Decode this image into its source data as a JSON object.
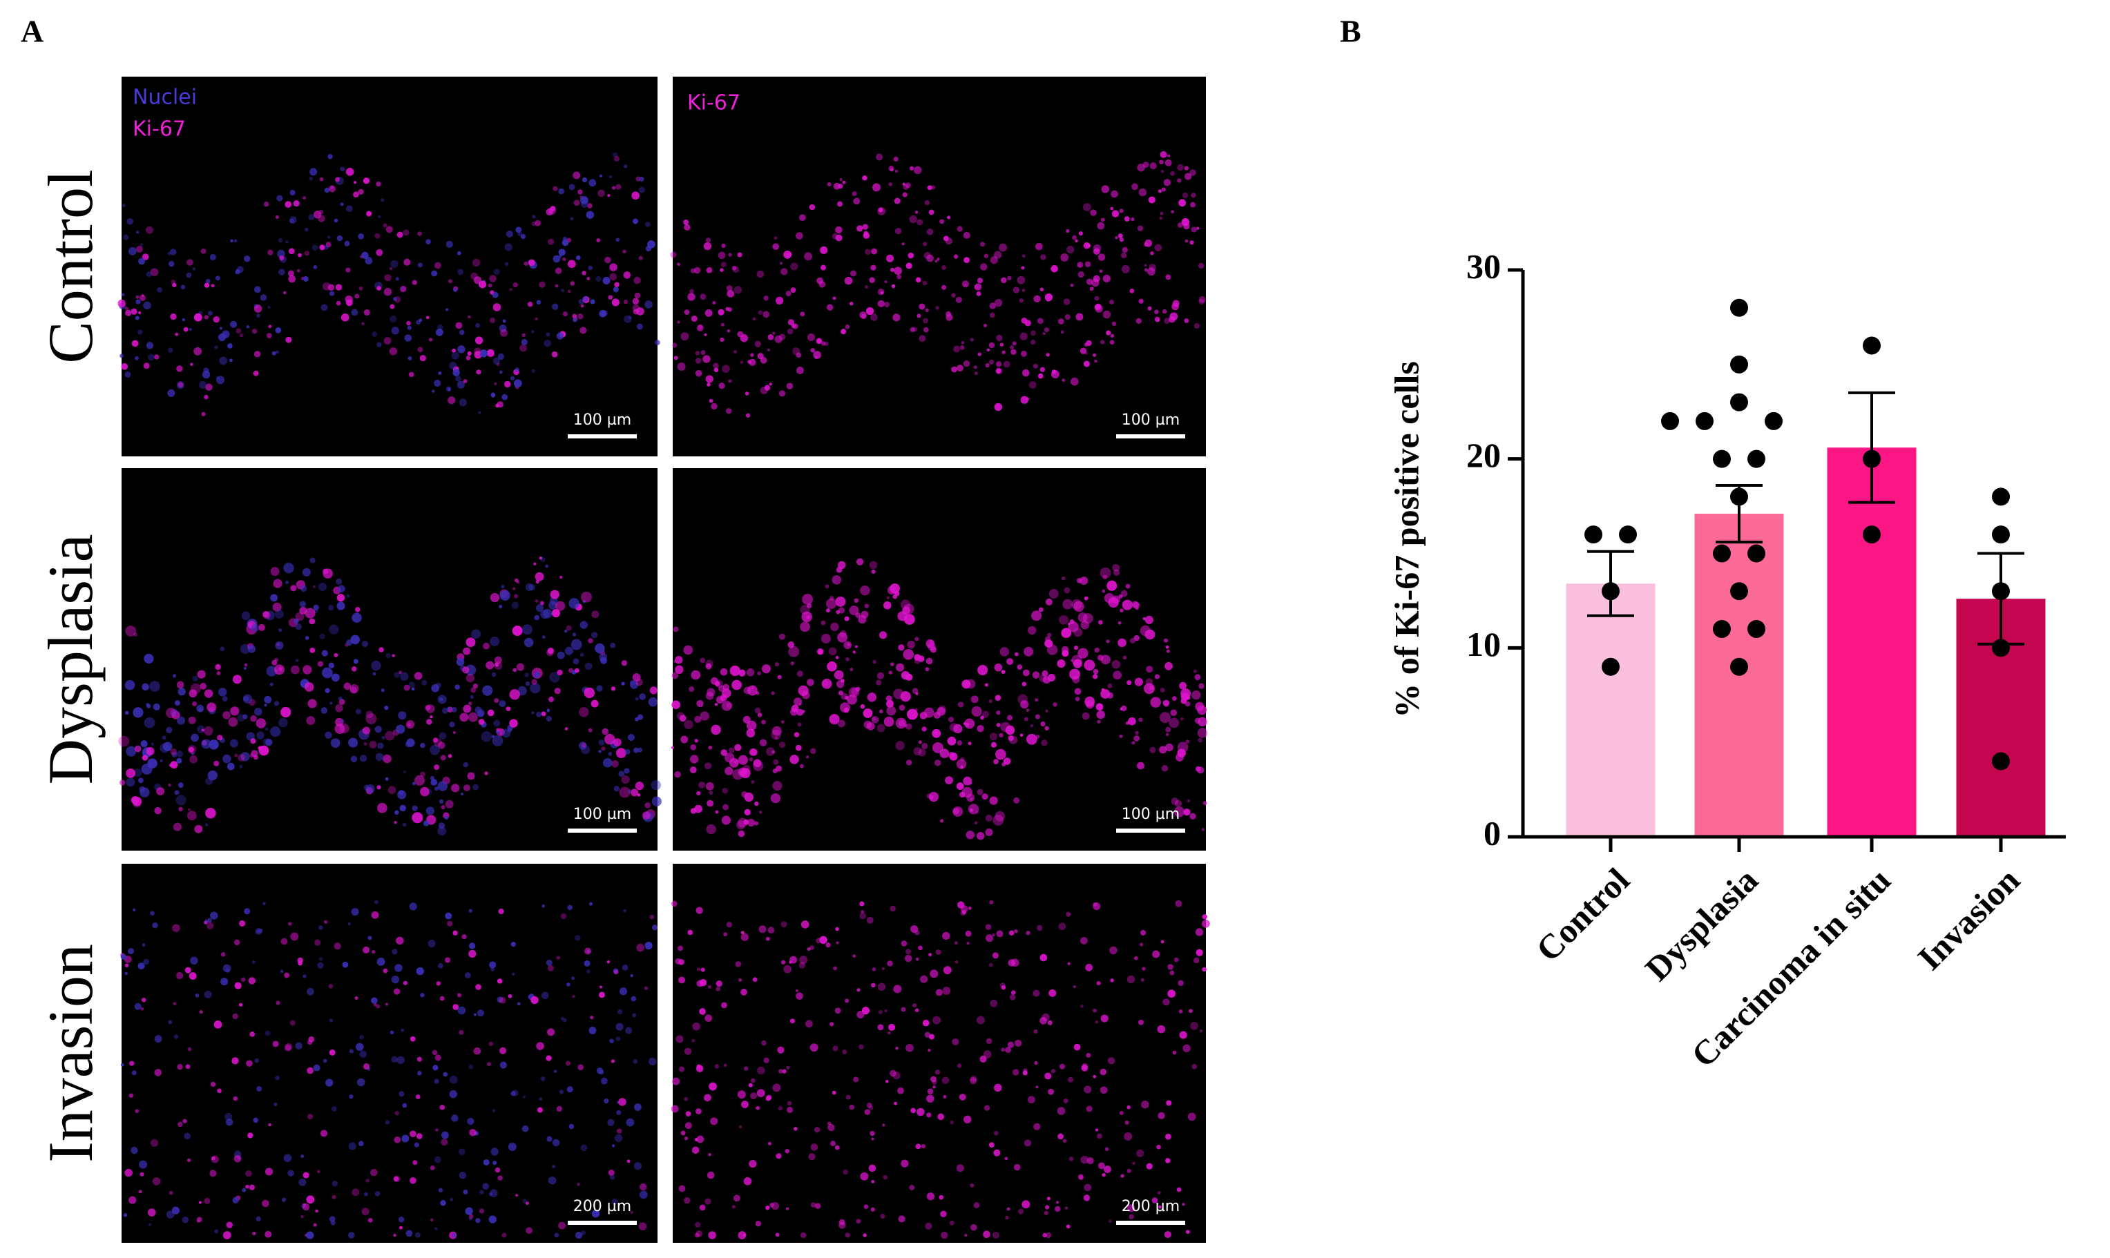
{
  "figure": {
    "panel_a_label": "A",
    "panel_b_label": "B",
    "channel_nuclei": "Nuclei",
    "channel_ki67": "Ki-67",
    "channel_ki67_right": "Ki-67",
    "rows": [
      {
        "label": "Control",
        "scale_left": "100 µm",
        "scale_right": "100 µm"
      },
      {
        "label": "Dysplasia",
        "scale_left": "100 µm",
        "scale_right": "100 µm"
      },
      {
        "label": "Invasion",
        "scale_left": "200 µm",
        "scale_right": "200 µm"
      }
    ]
  },
  "chart_data": {
    "type": "bar",
    "ylabel": "% of Ki-67 positive cells",
    "categories": [
      "Control",
      "Dysplasia",
      "Carcinoma in situ",
      "Invasion"
    ],
    "values": [
      13.4,
      17.1,
      20.6,
      12.6
    ],
    "errors": [
      1.7,
      1.5,
      2.9,
      2.4
    ],
    "points": [
      [
        16,
        16,
        13,
        9
      ],
      [
        28,
        25,
        23,
        22,
        22,
        22,
        20,
        20,
        18,
        15,
        15,
        13,
        11,
        11,
        9
      ],
      [
        26,
        20,
        16
      ],
      [
        18,
        16,
        13,
        10,
        4
      ]
    ],
    "colors": [
      "#fbc1dc",
      "#fc6a98",
      "#fc1585",
      "#c3064f"
    ],
    "point_color": "#000000",
    "ylim": [
      0,
      30
    ],
    "yticks": [
      0,
      10,
      20,
      30
    ]
  }
}
